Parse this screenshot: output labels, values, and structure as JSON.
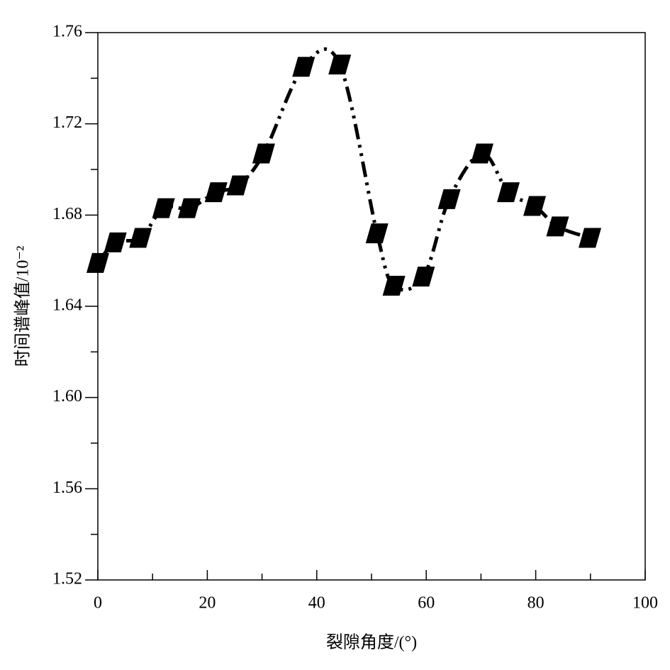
{
  "chart_data": {
    "type": "line",
    "x_label": "裂隙角度/(°)",
    "y_label": "时间谱峰值/10⁻²",
    "x": [
      0,
      3.2,
      7.8,
      12,
      16.7,
      21.6,
      25.6,
      30.3,
      37.6,
      44.2,
      51,
      54.1,
      59.5,
      64.2,
      70.2,
      75,
      79.8,
      84,
      89.9
    ],
    "series": [
      {
        "color": "#000000",
        "values": [
          1.659,
          1.668,
          1.67,
          1.683,
          1.683,
          1.69,
          1.693,
          1.707,
          1.745,
          1.746,
          1.672,
          1.649,
          1.653,
          1.687,
          1.707,
          1.69,
          1.684,
          1.675,
          1.67
        ]
      }
    ],
    "xlim": [
      0,
      100
    ],
    "xticks": [
      0,
      20,
      40,
      60,
      80,
      100
    ],
    "xminorticks": [
      10,
      30,
      50,
      70,
      90
    ],
    "ylim": [
      1.52,
      1.76
    ],
    "yticks": [
      1.52,
      1.56,
      {
        "value": 1.6,
        "label": "1.60"
      },
      1.64,
      1.68,
      1.72,
      1.76
    ],
    "yminorticks": [
      1.54,
      1.58,
      1.62,
      1.66,
      1.7,
      1.74
    ]
  }
}
